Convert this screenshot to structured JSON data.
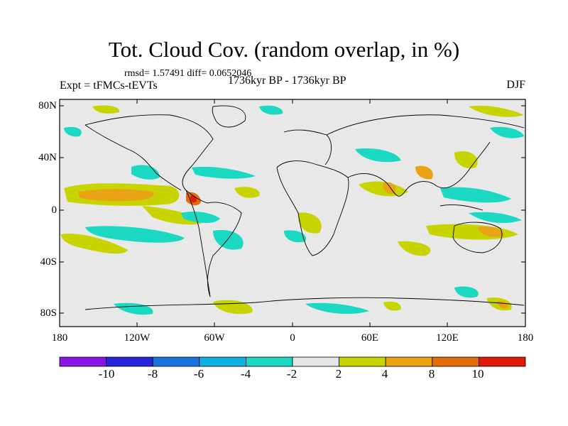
{
  "title": "Tot. Cloud Cov. (random overlap, in %)",
  "stats": "rmsd= 1.57491 diff= 0.0652046",
  "experiment": "Expt = tFMCs-tEVTs",
  "period": "1736kyr BP - 1736kyr BP",
  "season": "DJF",
  "lat_labels": [
    "80N",
    "40N",
    "0",
    "40S",
    "80S"
  ],
  "lon_labels": [
    "180",
    "120W",
    "60W",
    "0",
    "60E",
    "120E",
    "180"
  ],
  "colorbar": {
    "labels": [
      "-10",
      "-8",
      "-6",
      "-4",
      "-2",
      "2",
      "4",
      "8",
      "10"
    ],
    "colors": [
      "#8a16e6",
      "#2626d8",
      "#1a74dc",
      "#12b0e0",
      "#1ad8c2",
      "#e6e6e6",
      "#c8d400",
      "#e8a414",
      "#e06c0a",
      "#e01a0a"
    ]
  }
}
